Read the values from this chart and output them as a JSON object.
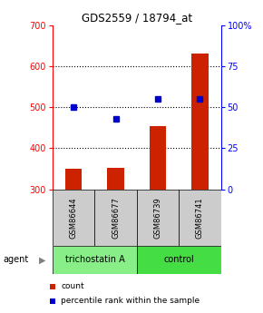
{
  "title": "GDS2559 / 18794_at",
  "samples": [
    "GSM86644",
    "GSM86677",
    "GSM86739",
    "GSM86741"
  ],
  "counts": [
    350,
    352,
    453,
    630
  ],
  "percentiles": [
    50,
    43,
    55,
    55
  ],
  "ylim_left": [
    300,
    700
  ],
  "ylim_right": [
    0,
    100
  ],
  "yticks_left": [
    300,
    400,
    500,
    600,
    700
  ],
  "yticks_right": [
    0,
    25,
    50,
    75,
    100
  ],
  "ytick_labels_right": [
    "0",
    "25",
    "50",
    "75",
    "100%"
  ],
  "bar_color": "#cc2200",
  "dot_color": "#0000cc",
  "grid_color": "#000000",
  "agent_groups": [
    {
      "label": "trichostatin A",
      "samples": [
        0,
        1
      ],
      "color": "#88ee88"
    },
    {
      "label": "control",
      "samples": [
        2,
        3
      ],
      "color": "#44dd44"
    }
  ],
  "agent_label": "agent",
  "sample_box_color": "#cccccc",
  "legend_count_color": "#cc2200",
  "legend_pct_color": "#0000cc",
  "legend_count_label": "count",
  "legend_pct_label": "percentile rank within the sample",
  "bar_width": 0.4,
  "background_color": "#ffffff"
}
